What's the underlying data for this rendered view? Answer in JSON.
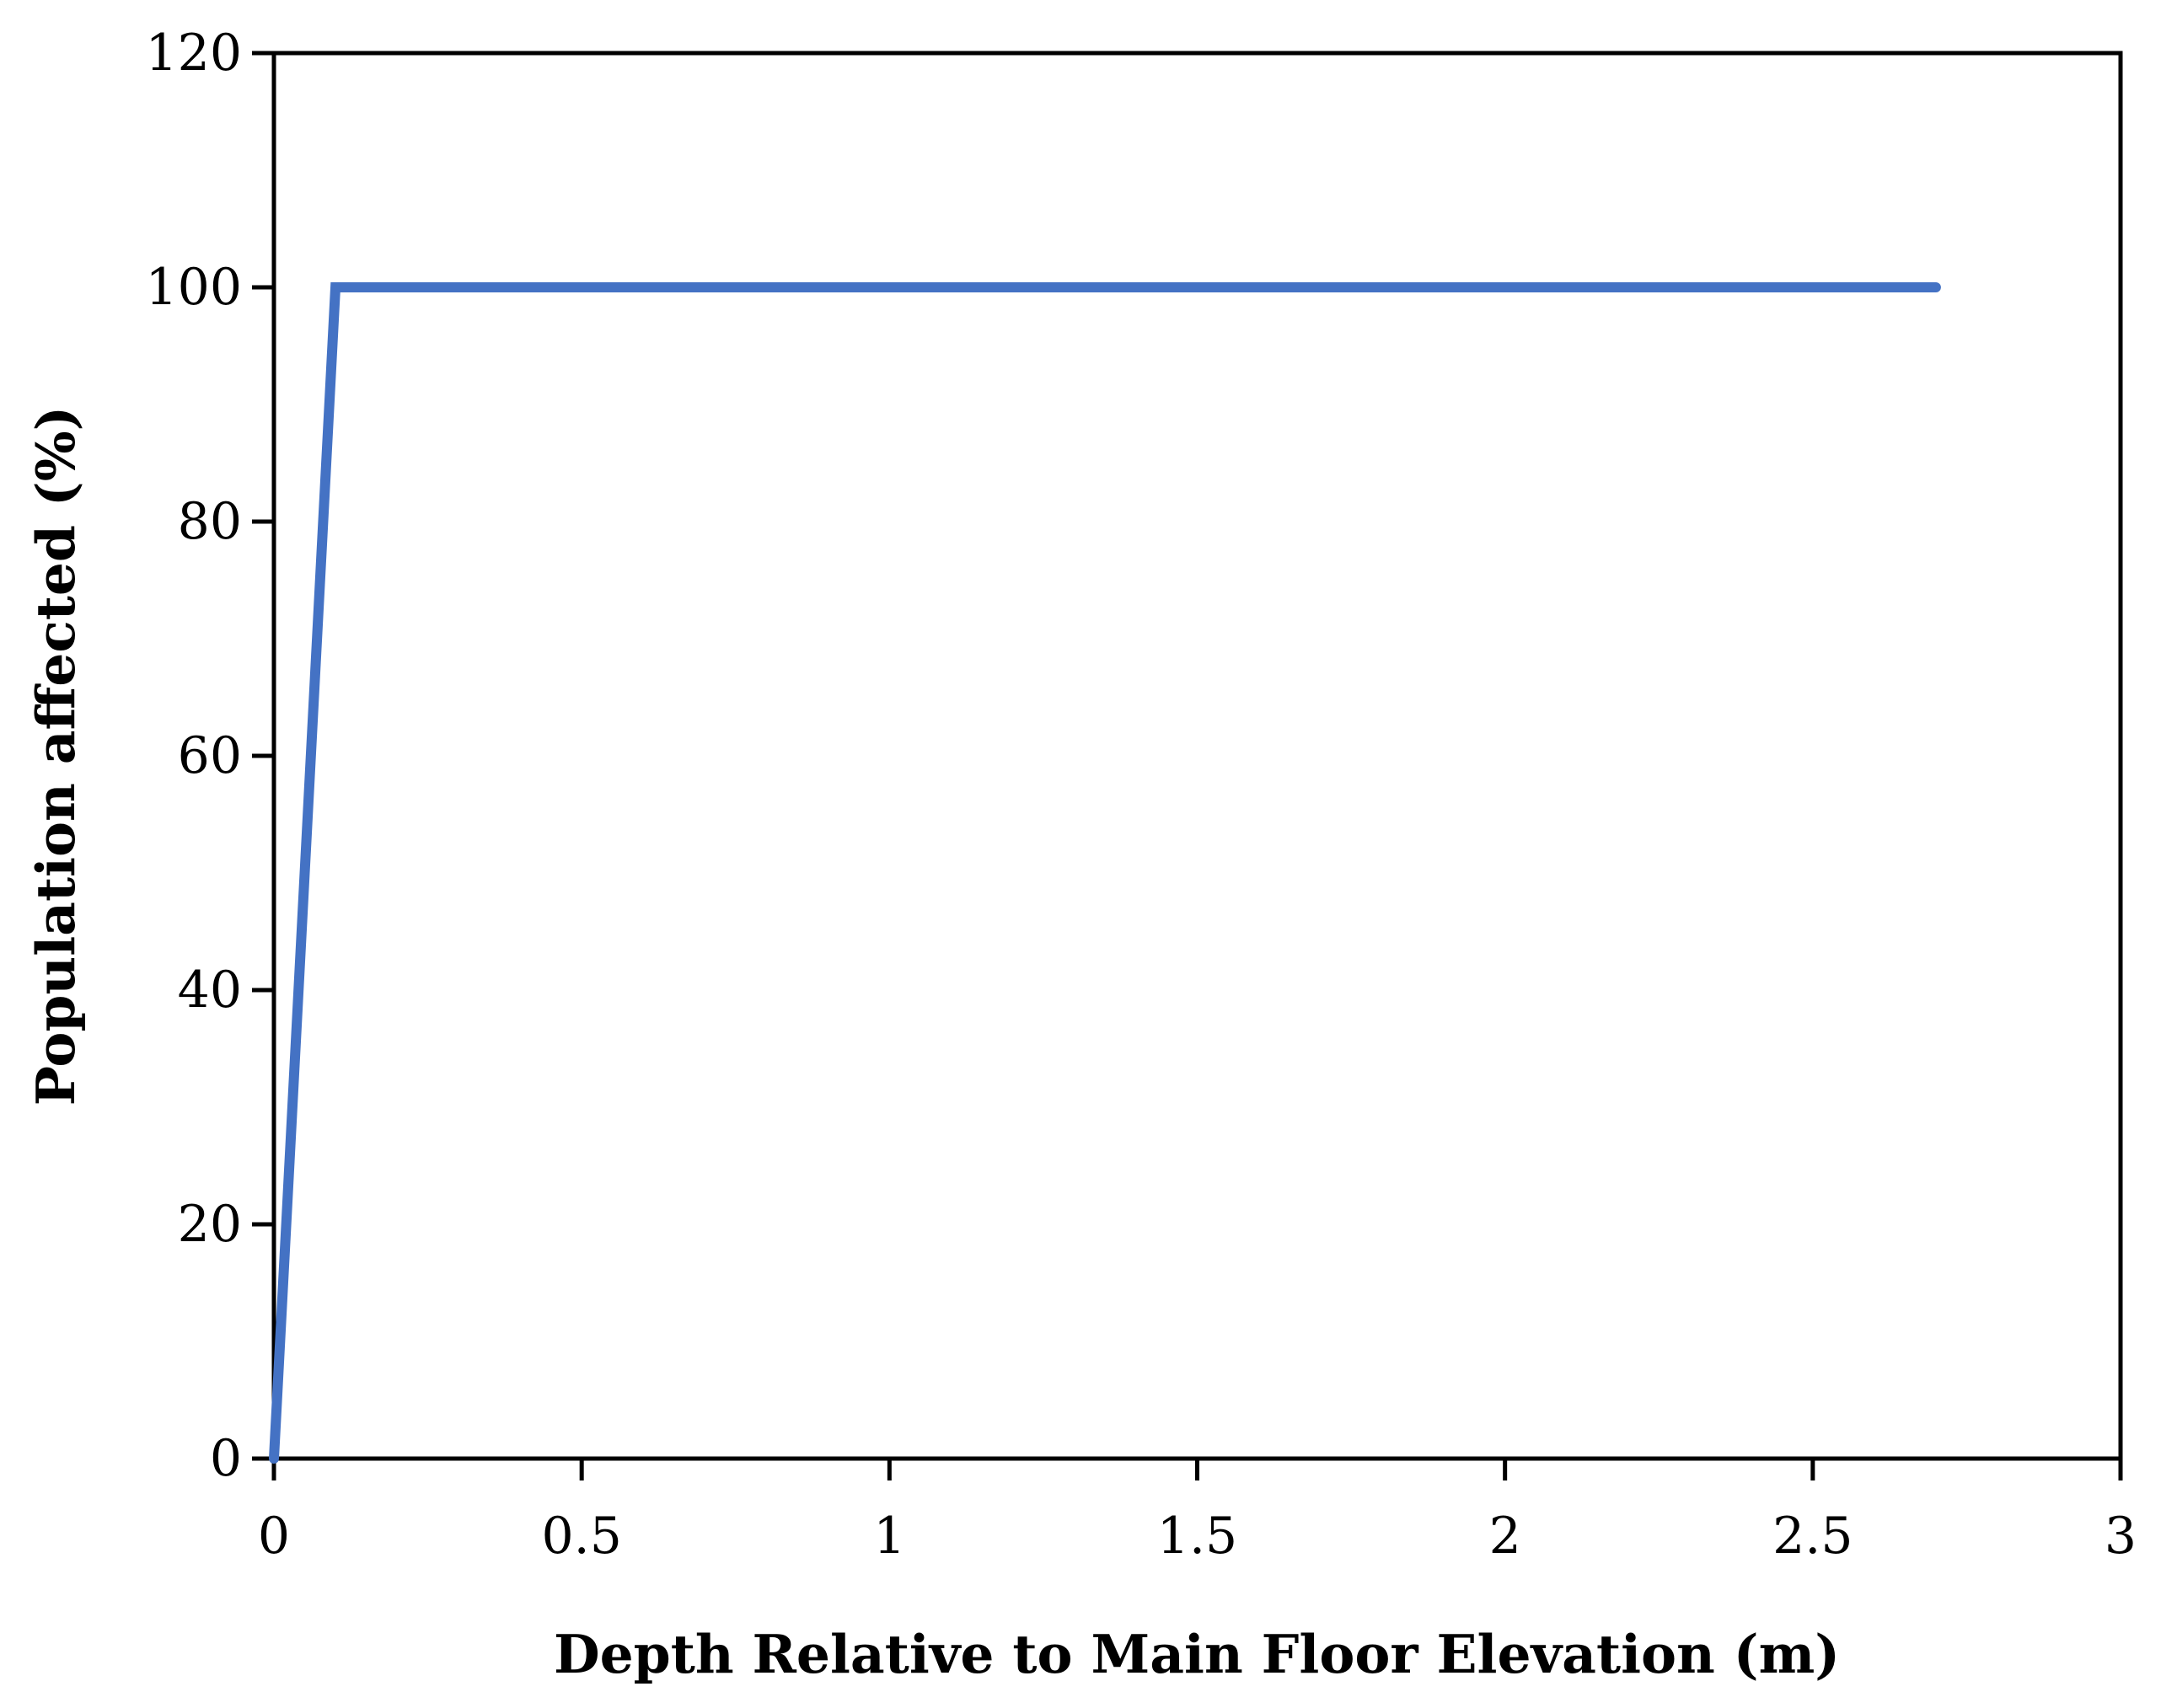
{
  "chart_data": {
    "type": "line",
    "title": "",
    "xlabel": "Depth Relative to Main Floor Elevation (m)",
    "ylabel": "Population affected (%)",
    "xlim": [
      0,
      3
    ],
    "ylim": [
      0,
      120
    ],
    "xticks": [
      0,
      0.5,
      1,
      1.5,
      2,
      2.5,
      3
    ],
    "yticks": [
      0,
      20,
      40,
      60,
      80,
      100,
      120
    ],
    "xtick_labels": [
      "0",
      "0.5",
      "1",
      "1.5",
      "2",
      "2.5",
      "3"
    ],
    "ytick_labels": [
      "0",
      "20",
      "40",
      "60",
      "80",
      "100",
      "120"
    ],
    "grid": false,
    "legend": "none",
    "series": [
      {
        "color": "#4472C4",
        "x": [
          0,
          0.1,
          2.7
        ],
        "y": [
          0,
          100,
          100
        ]
      }
    ]
  }
}
